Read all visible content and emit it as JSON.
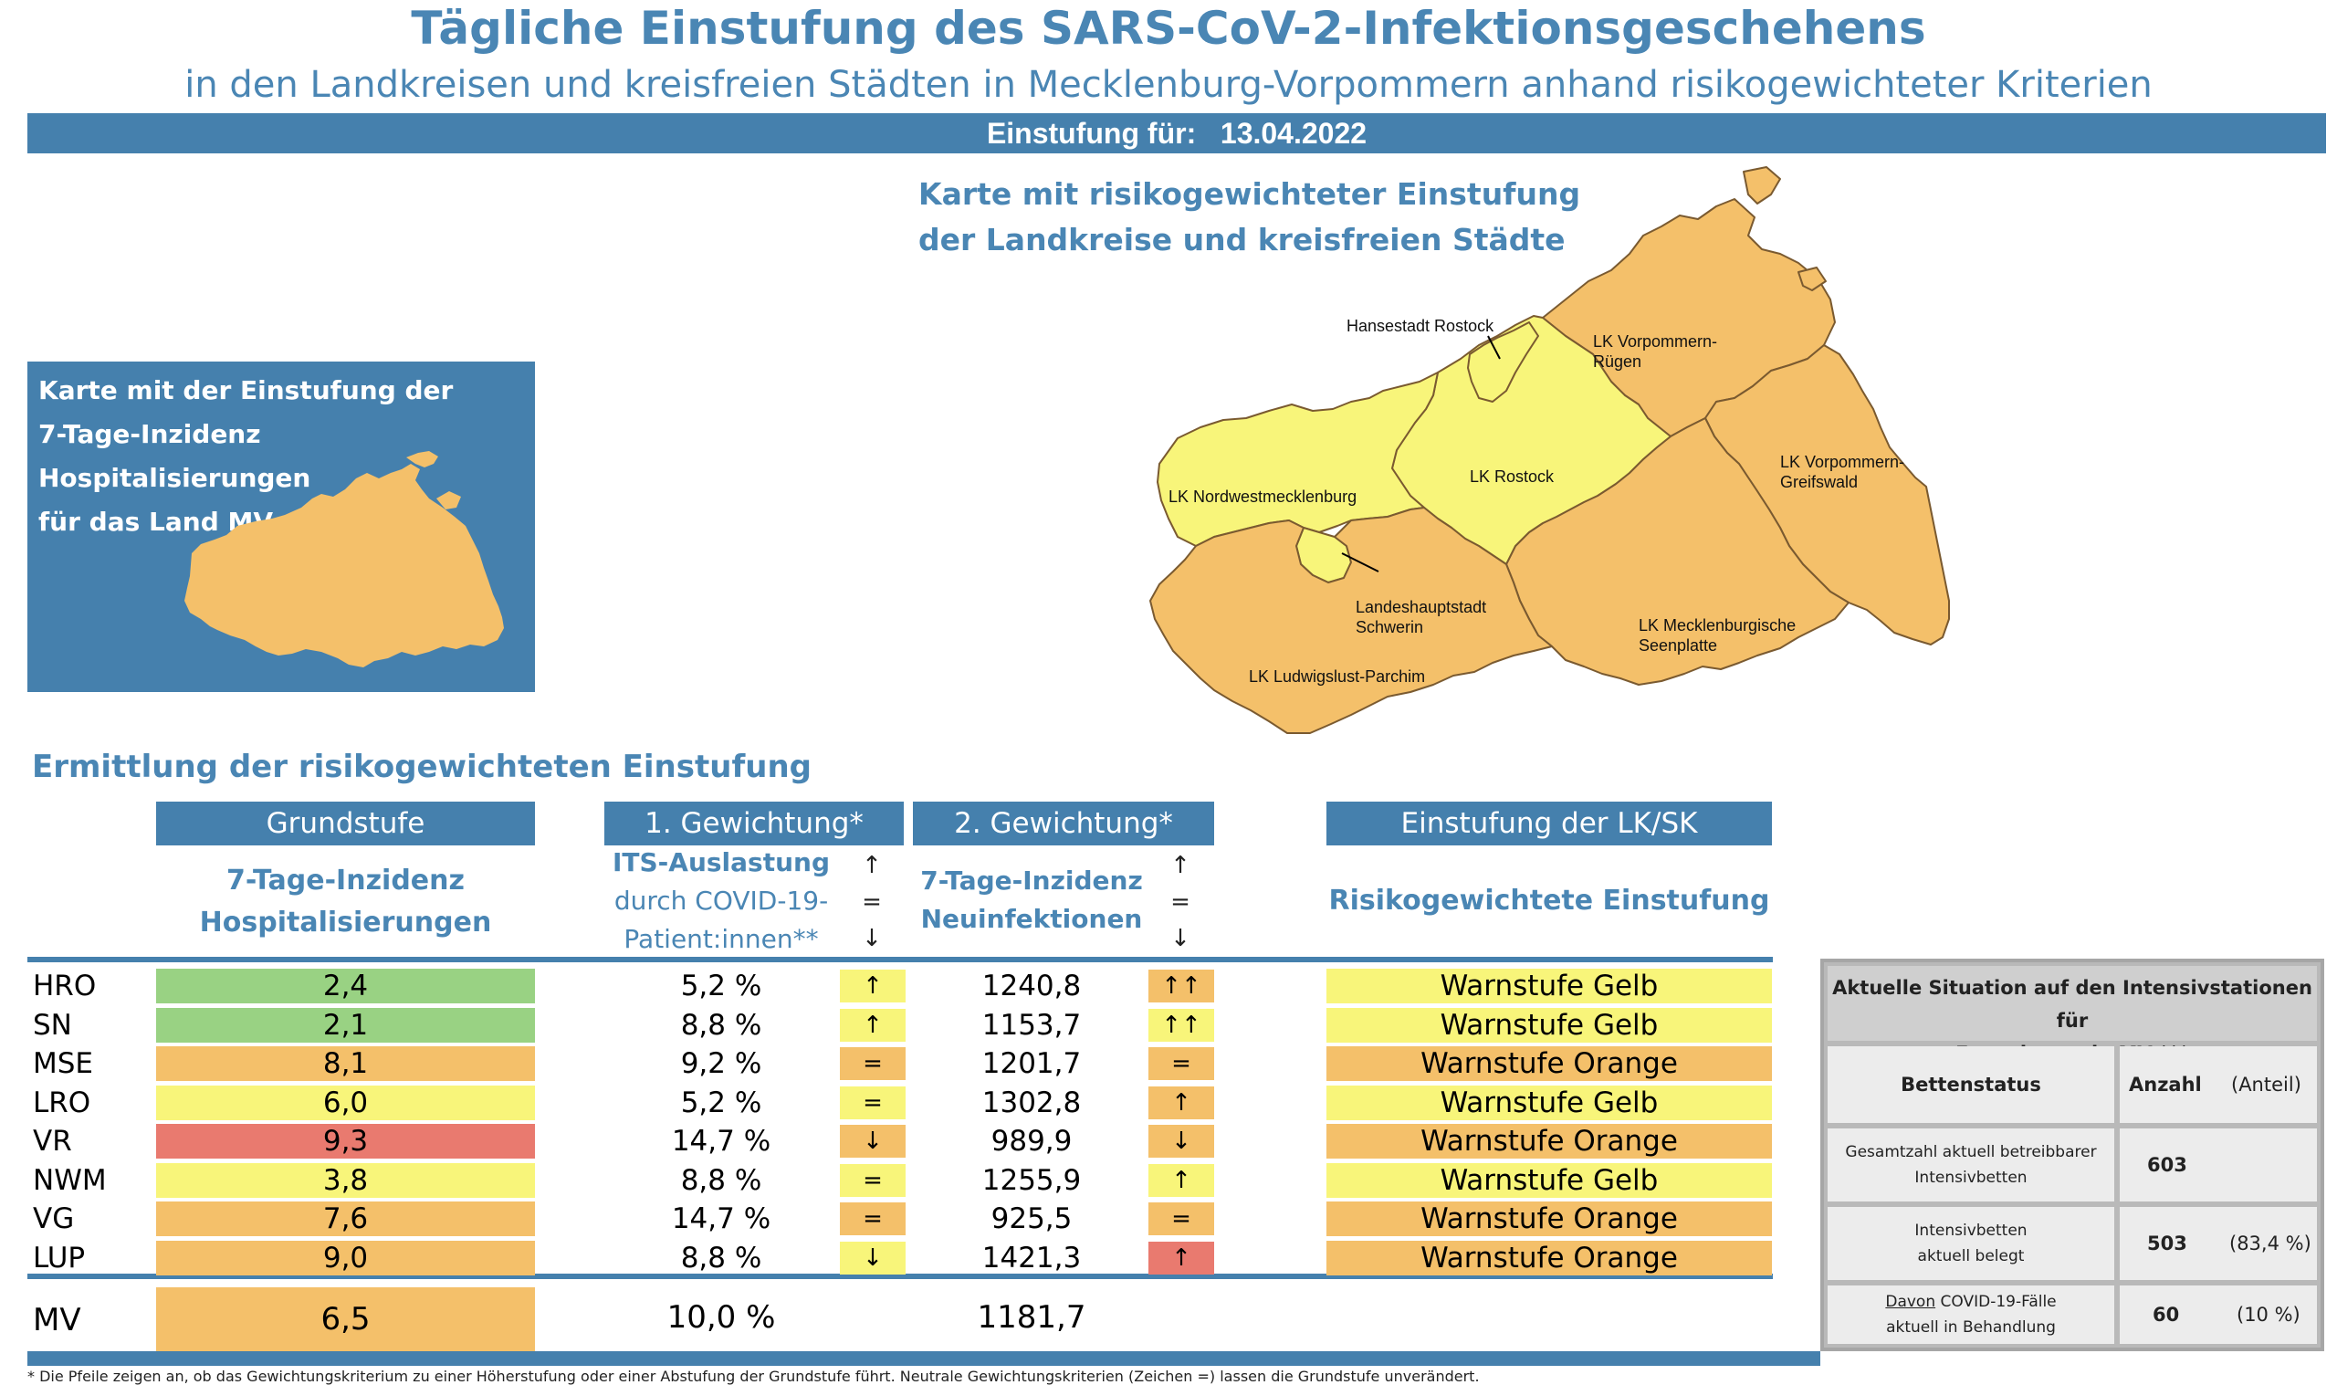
{
  "header": {
    "title": "Tägliche Einstufung des SARS-CoV-2-Infektionsgeschehens",
    "subtitle": "in den Landkreisen und kreisfreien Städten in Mecklenburg-Vorpommern anhand risikogewichteter Kriterien",
    "date_label": "Einstufung für:",
    "date_value": "13.04.2022"
  },
  "small_map": {
    "title_lines": [
      "Karte mit der Einstufung der",
      "7-Tage-Inzidenz Hospitalisierungen",
      "für das Land MV"
    ],
    "fill_color": "#f4c06a"
  },
  "big_map": {
    "title_lines": [
      "Karte mit risikogewichteter Einstufung",
      "der Landkreise und kreisfreien Städte"
    ],
    "labels": {
      "hro": "Hansestadt Rostock",
      "vr_1": "LK Vorpommern-",
      "vr_2": "Rügen",
      "nwm": "LK Nordwestmecklenburg",
      "lro": "LK Rostock",
      "vg_1": "LK Vorpommern-",
      "vg_2": "Greifswald",
      "sn_1": "Landeshauptstadt",
      "sn_2": "Schwerin",
      "mse_1": "LK Mecklenburgische",
      "mse_2": "Seenplatte",
      "lup": "LK Ludwigslust-Parchim"
    }
  },
  "table": {
    "section_title": "Ermittlung der risikogewichteten Einstufung",
    "headers": {
      "grundstufe": "Grundstufe",
      "gew1": "1. Gewichtung*",
      "gew2": "2. Gewichtung*",
      "einstufung": "Einstufung der LK/SK"
    },
    "subheaders": {
      "grundstufe_1": "7-Tage-Inzidenz",
      "grundstufe_2": "Hospitalisierungen",
      "gew1_1": "ITS-Auslastung",
      "gew1_2": "durch COVID-19-",
      "gew1_3": "Patient:innen**",
      "gew2_1": "7-Tage-Inzidenz",
      "gew2_2": "Neuinfektionen",
      "einstufung": "Risikogewichtete Einstufung",
      "arrow_up": "↑",
      "arrow_eq": "=",
      "arrow_down": "↓"
    },
    "rows": [
      {
        "code": "HRO",
        "hosp": "2,4",
        "hosp_color": "#99d283",
        "its": "5,2 %",
        "its_arrow": "↑",
        "its_arrow_color": "#f8f57a",
        "inz": "1240,8",
        "inz_arrow": "↑↑",
        "inz_arrow_color": "#f4c06a",
        "stufe": "Warnstufe Gelb",
        "stufe_color": "#f8f57a"
      },
      {
        "code": "SN",
        "hosp": "2,1",
        "hosp_color": "#99d283",
        "its": "8,8 %",
        "its_arrow": "↑",
        "its_arrow_color": "#f8f57a",
        "inz": "1153,7",
        "inz_arrow": "↑↑",
        "inz_arrow_color": "#f8f57a",
        "stufe": "Warnstufe Gelb",
        "stufe_color": "#f8f57a"
      },
      {
        "code": "MSE",
        "hosp": "8,1",
        "hosp_color": "#f4c06a",
        "its": "9,2 %",
        "its_arrow": "=",
        "its_arrow_color": "#f4c06a",
        "inz": "1201,7",
        "inz_arrow": "=",
        "inz_arrow_color": "#f4c06a",
        "stufe": "Warnstufe Orange",
        "stufe_color": "#f4c06a"
      },
      {
        "code": "LRO",
        "hosp": "6,0",
        "hosp_color": "#f8f57a",
        "its": "5,2 %",
        "its_arrow": "=",
        "its_arrow_color": "#f8f57a",
        "inz": "1302,8",
        "inz_arrow": "↑",
        "inz_arrow_color": "#f4c06a",
        "stufe": "Warnstufe Gelb",
        "stufe_color": "#f8f57a"
      },
      {
        "code": "VR",
        "hosp": "9,3",
        "hosp_color": "#e97a6f",
        "its": "14,7 %",
        "its_arrow": "↓",
        "its_arrow_color": "#f4c06a",
        "inz": "989,9",
        "inz_arrow": "↓",
        "inz_arrow_color": "#f4c06a",
        "stufe": "Warnstufe Orange",
        "stufe_color": "#f4c06a"
      },
      {
        "code": "NWM",
        "hosp": "3,8",
        "hosp_color": "#f8f57a",
        "its": "8,8 %",
        "its_arrow": "=",
        "its_arrow_color": "#f8f57a",
        "inz": "1255,9",
        "inz_arrow": "↑",
        "inz_arrow_color": "#f8f57a",
        "stufe": "Warnstufe Gelb",
        "stufe_color": "#f8f57a"
      },
      {
        "code": "VG",
        "hosp": "7,6",
        "hosp_color": "#f4c06a",
        "its": "14,7 %",
        "its_arrow": "=",
        "its_arrow_color": "#f4c06a",
        "inz": "925,5",
        "inz_arrow": "=",
        "inz_arrow_color": "#f4c06a",
        "stufe": "Warnstufe Orange",
        "stufe_color": "#f4c06a"
      },
      {
        "code": "LUP",
        "hosp": "9,0",
        "hosp_color": "#f4c06a",
        "its": "8,8 %",
        "its_arrow": "↓",
        "its_arrow_color": "#f8f57a",
        "inz": "1421,3",
        "inz_arrow": "↑",
        "inz_arrow_color": "#e97a6f",
        "stufe": "Warnstufe Orange",
        "stufe_color": "#f4c06a"
      }
    ],
    "total": {
      "code": "MV",
      "hosp": "6,5",
      "hosp_color": "#f4c06a",
      "its": "10,0 %",
      "inz": "1181,7"
    }
  },
  "icu": {
    "title_1": "Aktuelle Situation auf den Intensivstationen für",
    "title_2": "Erwachsene in MV ***",
    "col_status": "Bettenstatus",
    "col_anzahl": "Anzahl",
    "col_anteil": "(Anteil)",
    "rows": [
      {
        "label_1": "Gesamtzahl aktuell betreibbarer",
        "label_2": "Intensivbetten",
        "anzahl": "603",
        "anteil": ""
      },
      {
        "label_1": "Intensivbetten",
        "label_2": "aktuell belegt",
        "anzahl": "503",
        "anteil": "(83,4 %)"
      },
      {
        "label_1_u": "Davon",
        "label_1": " COVID-19-Fälle",
        "label_2": "aktuell in Behandlung",
        "anzahl": "60",
        "anteil": "(10 %)"
      }
    ]
  },
  "footnote": "* Die Pfeile zeigen an, ob das Gewichtungskriterium zu einer Höherstufung oder einer Abstufung der Grundstufe führt. Neutrale Gewichtungskriterien (Zeichen =) lassen die Grundstufe unverändert."
}
